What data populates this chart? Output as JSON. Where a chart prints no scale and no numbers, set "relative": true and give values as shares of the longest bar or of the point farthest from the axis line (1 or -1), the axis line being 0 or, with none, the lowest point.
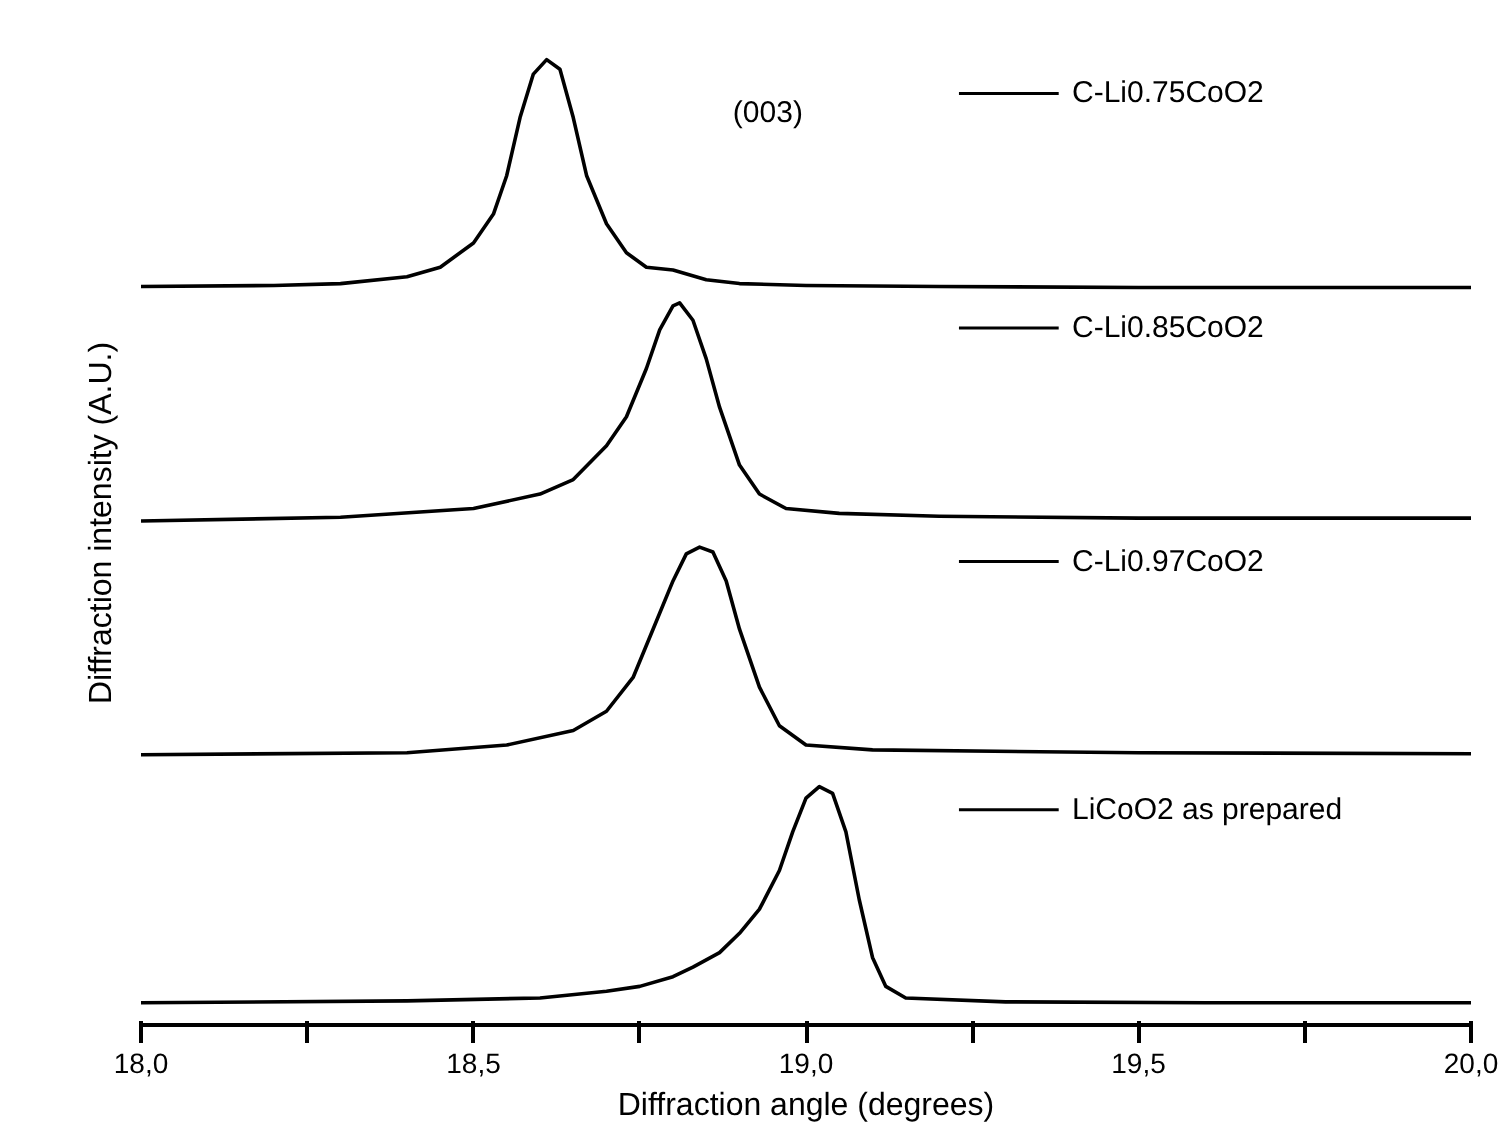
{
  "chart_data": {
    "type": "line",
    "relative": true,
    "xlabel": "Diffraction angle (degrees)",
    "ylabel": "Diffraction intensity (A.U.)",
    "xlim": [
      18.0,
      20.0
    ],
    "xticks": [
      {
        "value": 18.0,
        "label": "18,0"
      },
      {
        "value": 18.25,
        "label": null
      },
      {
        "value": 18.5,
        "label": "18,5"
      },
      {
        "value": 18.75,
        "label": null
      },
      {
        "value": 19.0,
        "label": "19,0"
      },
      {
        "value": 19.25,
        "label": null
      },
      {
        "value": 19.5,
        "label": "19,5"
      },
      {
        "value": 19.75,
        "label": null
      },
      {
        "value": 20.0,
        "label": "20,0"
      }
    ],
    "tick_labels": "x",
    "grid": false,
    "legend": "right",
    "line_style": "solid",
    "marker": "none",
    "annotations": [
      "(003)"
    ],
    "series": [
      {
        "name": "C-Li0.75CoO2",
        "color": "#000000",
        "x": [
          18.0,
          18.2,
          18.3,
          18.4,
          18.45,
          18.5,
          18.53,
          18.55,
          18.57,
          18.59,
          18.61,
          18.63,
          18.65,
          18.67,
          18.7,
          18.73,
          18.76,
          18.8,
          18.85,
          18.9,
          19.0,
          19.2,
          19.5,
          19.8,
          20.0
        ],
        "values": [
          0.765,
          0.766,
          0.768,
          0.775,
          0.785,
          0.81,
          0.84,
          0.88,
          0.94,
          0.985,
          1.0,
          0.99,
          0.94,
          0.88,
          0.83,
          0.8,
          0.785,
          0.782,
          0.772,
          0.768,
          0.766,
          0.765,
          0.764,
          0.764,
          0.764
        ]
      },
      {
        "name": "C-Li0.85CoO2",
        "color": "#000000",
        "x": [
          18.0,
          18.3,
          18.5,
          18.6,
          18.65,
          18.7,
          18.73,
          18.76,
          18.78,
          18.8,
          18.81,
          18.83,
          18.85,
          18.87,
          18.9,
          18.93,
          18.97,
          19.05,
          19.2,
          19.5,
          20.0
        ],
        "values": [
          0.522,
          0.526,
          0.535,
          0.55,
          0.565,
          0.6,
          0.63,
          0.68,
          0.72,
          0.745,
          0.748,
          0.73,
          0.69,
          0.64,
          0.58,
          0.55,
          0.535,
          0.53,
          0.527,
          0.525,
          0.525
        ]
      },
      {
        "name": "C-Li0.97CoO2",
        "color": "#000000",
        "x": [
          18.0,
          18.4,
          18.55,
          18.65,
          18.7,
          18.74,
          18.77,
          18.8,
          18.82,
          18.84,
          18.86,
          18.88,
          18.9,
          18.93,
          18.96,
          19.0,
          19.1,
          19.5,
          20.0
        ],
        "values": [
          0.28,
          0.282,
          0.29,
          0.305,
          0.325,
          0.36,
          0.41,
          0.46,
          0.488,
          0.495,
          0.49,
          0.46,
          0.41,
          0.35,
          0.31,
          0.29,
          0.285,
          0.282,
          0.281
        ]
      },
      {
        "name": "LiCoO2 as prepared",
        "color": "#000000",
        "x": [
          18.0,
          18.4,
          18.6,
          18.7,
          18.75,
          18.8,
          18.83,
          18.87,
          18.9,
          18.93,
          18.96,
          18.98,
          19.0,
          19.02,
          19.04,
          19.06,
          19.08,
          19.1,
          19.12,
          19.15,
          19.3,
          19.6,
          20.0
        ],
        "values": [
          0.023,
          0.025,
          0.028,
          0.035,
          0.04,
          0.05,
          0.06,
          0.075,
          0.095,
          0.12,
          0.16,
          0.2,
          0.235,
          0.247,
          0.24,
          0.2,
          0.13,
          0.07,
          0.04,
          0.028,
          0.024,
          0.023,
          0.023
        ]
      }
    ]
  }
}
